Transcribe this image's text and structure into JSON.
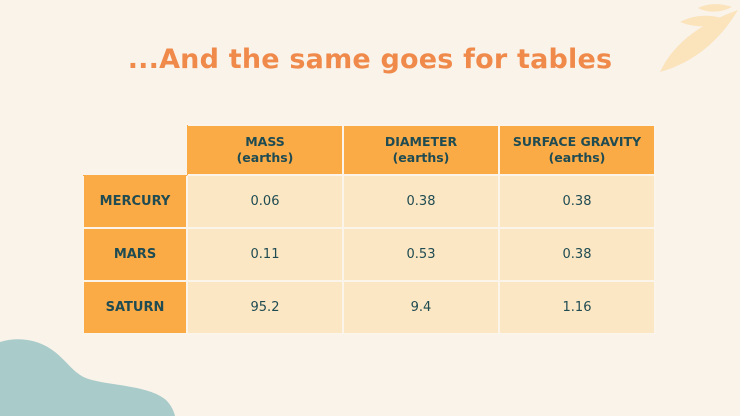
{
  "slide": {
    "title": "...And the same goes for tables",
    "colors": {
      "background": "#f9f3ea",
      "title": "#f08a4b",
      "header_fill": "#fbab45",
      "cell_fill": "#fbe7c3",
      "text": "#1f4b52",
      "blob": "#a9cbc9",
      "leaf": "#fbe3bc"
    },
    "decorations": [
      "leaf-icon",
      "blob-shape"
    ]
  },
  "table": {
    "columns": [
      {
        "line1": "MASS",
        "line2": "(earths)"
      },
      {
        "line1": "DIAMETER",
        "line2": "(earths)"
      },
      {
        "line1": "SURFACE GRAVITY",
        "line2": "(earths)"
      }
    ],
    "rows": [
      {
        "label": "MERCURY",
        "values": [
          "0.06",
          "0.38",
          "0.38"
        ]
      },
      {
        "label": "MARS",
        "values": [
          "0.11",
          "0.53",
          "0.38"
        ]
      },
      {
        "label": "SATURN",
        "values": [
          "95.2",
          "9.4",
          "1.16"
        ]
      }
    ]
  }
}
